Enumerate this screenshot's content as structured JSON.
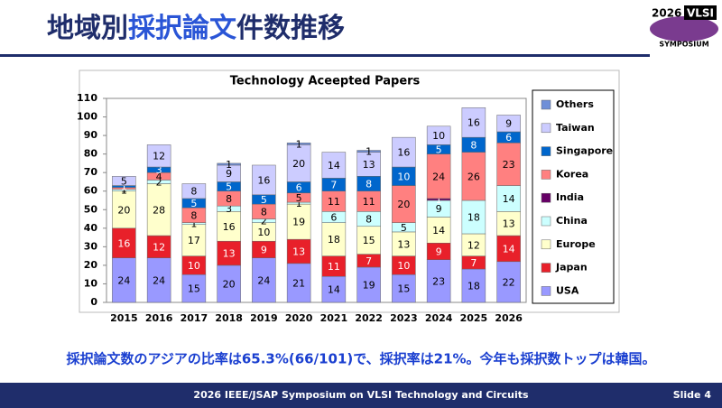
{
  "slide": {
    "title_parts": [
      "地域別",
      "採択論文",
      "件数推移"
    ],
    "logo": {
      "year": "2026",
      "name": "VLSI",
      "sub": "SYMPOSIUM"
    },
    "summary": "採択論文数のアジアの比率は65.3%(66/101)で、採択率は21%。今年も採択数トップは韓国。",
    "footer": "2026 IEEE/JSAP Symposium on VLSI Technology and Circuits",
    "slide_number": "Slide 4"
  },
  "chart_data": {
    "type": "stacked_bar",
    "title": "Technology Aceepted Papers",
    "categories": [
      "2015",
      "2016",
      "2017",
      "2018",
      "2019",
      "2020",
      "2021",
      "2022",
      "2023",
      "2024",
      "2025",
      "2026"
    ],
    "series": [
      {
        "name": "USA",
        "color": "#9999ff",
        "values": [
          24,
          24,
          15,
          20,
          24,
          21,
          14,
          19,
          15,
          23,
          18,
          22
        ]
      },
      {
        "name": "Japan",
        "color": "#e8202a",
        "values": [
          16,
          12,
          10,
          13,
          9,
          13,
          11,
          7,
          10,
          9,
          7,
          14
        ]
      },
      {
        "name": "Europe",
        "color": "#ffffcc",
        "values": [
          20,
          28,
          17,
          16,
          10,
          19,
          18,
          15,
          13,
          14,
          12,
          13
        ]
      },
      {
        "name": "China",
        "color": "#ccffff",
        "values": [
          1,
          2,
          1,
          3,
          2,
          1,
          6,
          8,
          5,
          9,
          18,
          14
        ]
      },
      {
        "name": "India",
        "color": "#660066",
        "values": [
          0,
          0,
          0,
          0,
          0,
          0,
          0,
          0,
          0,
          1,
          0,
          0
        ]
      },
      {
        "name": "Korea",
        "color": "#ff8080",
        "values": [
          1,
          4,
          8,
          8,
          8,
          5,
          11,
          11,
          20,
          24,
          26,
          23
        ]
      },
      {
        "name": "Singapore",
        "color": "#0066cc",
        "values": [
          1,
          3,
          5,
          5,
          5,
          6,
          7,
          8,
          10,
          5,
          8,
          6
        ]
      },
      {
        "name": "Taiwan",
        "color": "#ccccff",
        "values": [
          5,
          12,
          8,
          9,
          16,
          20,
          14,
          13,
          16,
          10,
          16,
          9
        ]
      },
      {
        "name": "Others",
        "color": "#6f8fd8",
        "values": [
          0,
          0,
          0,
          1,
          0,
          1,
          0,
          1,
          0,
          0,
          0,
          0
        ]
      }
    ],
    "ylim": [
      0,
      110
    ],
    "yticks": [
      0,
      10,
      20,
      30,
      40,
      50,
      60,
      70,
      80,
      90,
      100,
      110
    ],
    "grid": false
  }
}
